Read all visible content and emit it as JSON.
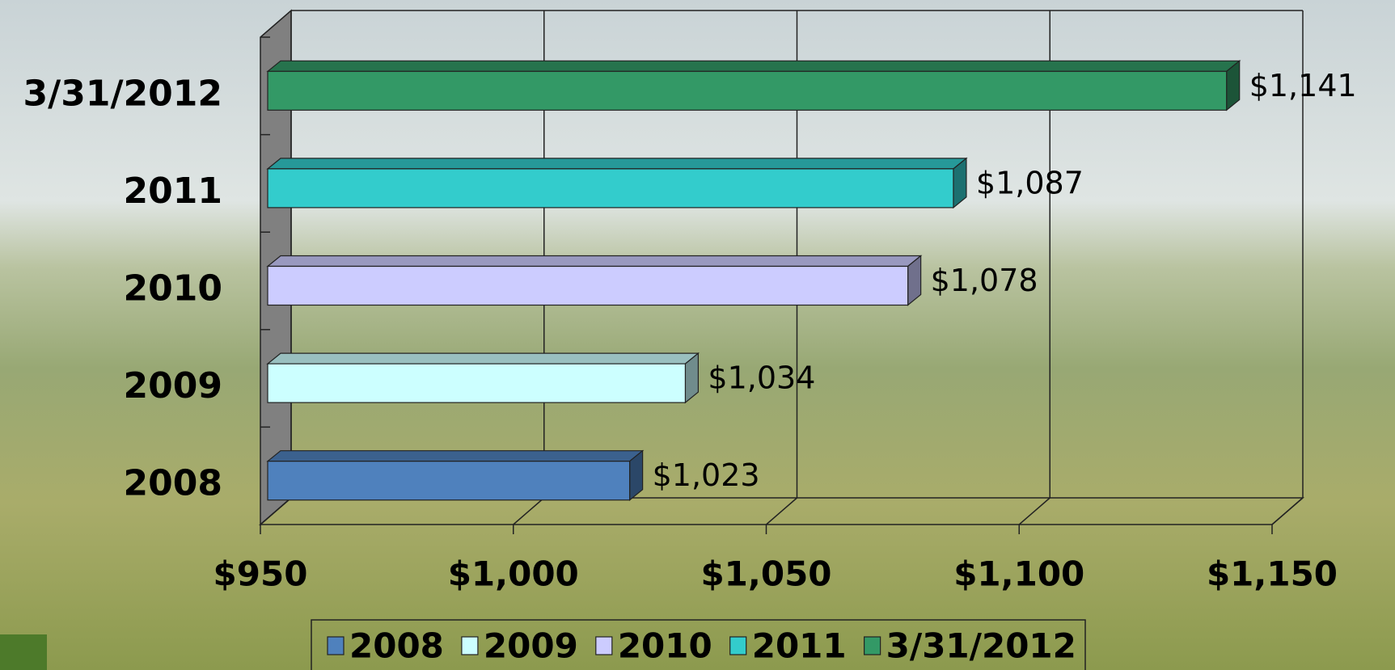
{
  "chart_data": {
    "type": "bar3d-horizontal",
    "categories": [
      "3/31/2012",
      "2011",
      "2010",
      "2009",
      "2008"
    ],
    "series": [
      {
        "name": "2008",
        "color": "#4f81bd",
        "values": [
          null,
          null,
          null,
          null,
          1023
        ],
        "value_labels": [
          null,
          null,
          null,
          null,
          "$1,023"
        ]
      },
      {
        "name": "2009",
        "color": "#ccffff",
        "values": [
          null,
          null,
          null,
          1034,
          null
        ],
        "value_labels": [
          null,
          null,
          null,
          "$1,034",
          null
        ]
      },
      {
        "name": "2010",
        "color": "#ccccff",
        "values": [
          null,
          null,
          1078,
          null,
          null
        ],
        "value_labels": [
          null,
          null,
          "$1,078",
          null,
          null
        ]
      },
      {
        "name": "2011",
        "color": "#33cccc",
        "values": [
          null,
          1087,
          null,
          null,
          null
        ],
        "value_labels": [
          null,
          "$1,087",
          null,
          null,
          null
        ]
      },
      {
        "name": "3/31/2012",
        "color": "#339966",
        "values": [
          1141,
          null,
          null,
          null,
          null
        ],
        "value_labels": [
          "$1,141",
          null,
          null,
          null,
          null
        ]
      }
    ],
    "xlim": [
      950,
      1150
    ],
    "xticks": [
      {
        "value": 950,
        "label": "$950"
      },
      {
        "value": 1000,
        "label": "$1,000"
      },
      {
        "value": 1050,
        "label": "$1,050"
      },
      {
        "value": 1100,
        "label": "$1,100"
      },
      {
        "value": 1150,
        "label": "$1,150"
      }
    ],
    "grid": true,
    "legend": "bottom"
  }
}
